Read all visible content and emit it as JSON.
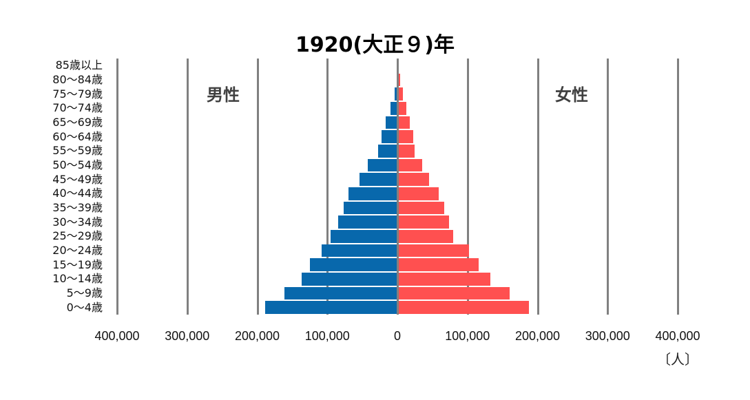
{
  "chart_data": {
    "type": "bar",
    "orientation": "horizontal",
    "subtype": "population-pyramid",
    "title": "1920(大正９)年",
    "xlabel": "",
    "unit_label": "〔人〕",
    "ylabel": "",
    "xlim": [
      -400000,
      400000
    ],
    "grid": true,
    "x_ticks": [
      "400,000",
      "300,000",
      "200,000",
      "100,000",
      "0",
      "100,000",
      "200,000",
      "300,000",
      "400,000"
    ],
    "categories": [
      "0〜4歳",
      "5〜9歳",
      "10〜14歳",
      "15〜19歳",
      "20〜24歳",
      "25〜29歳",
      "30〜34歳",
      "35〜39歳",
      "40〜44歳",
      "45〜49歳",
      "50〜54歳",
      "55〜59歳",
      "60〜64歳",
      "65〜69歳",
      "70〜74歳",
      "75〜79歳",
      "80〜84歳",
      "85歳以上"
    ],
    "series": [
      {
        "name": "男性",
        "color": "#0868AC",
        "side": "left",
        "values": [
          189000,
          161000,
          137000,
          125000,
          108000,
          95000,
          85000,
          77000,
          70000,
          54000,
          42000,
          28000,
          23000,
          17000,
          10000,
          4000,
          1000,
          300
        ]
      },
      {
        "name": "女性",
        "color": "#FF5050",
        "side": "right",
        "values": [
          187000,
          159000,
          132000,
          115000,
          101000,
          79000,
          73000,
          66000,
          58000,
          44000,
          34000,
          24000,
          22000,
          17000,
          12000,
          7000,
          3000,
          1000
        ]
      }
    ],
    "legend": "inline labels (男性 left, 女性 right)"
  },
  "labels": {
    "male": "男性",
    "female": "女性"
  }
}
